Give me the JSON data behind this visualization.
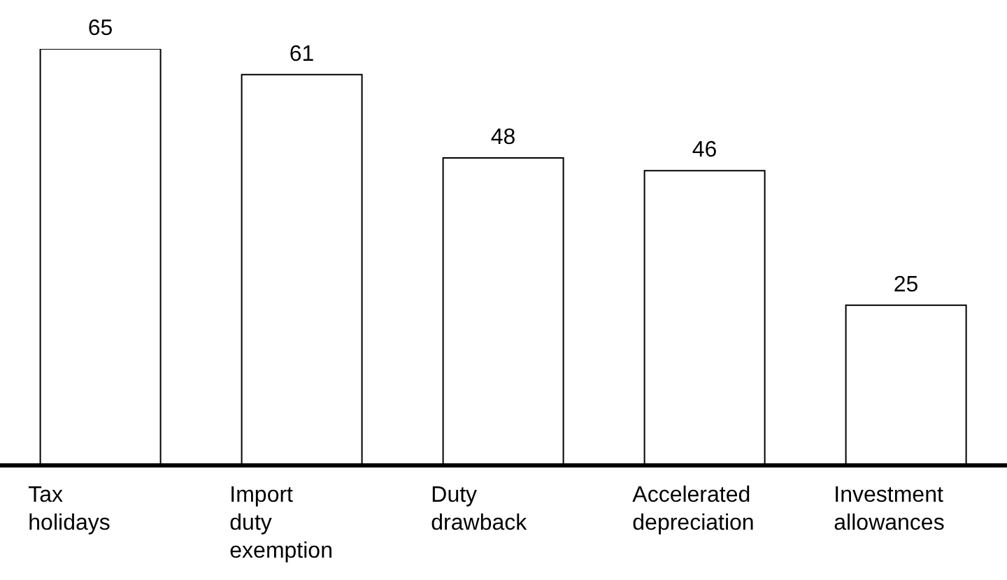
{
  "chart_data": {
    "type": "bar",
    "categories": [
      "Tax holidays",
      "Import duty exemption",
      "Duty drawback",
      "Accelerated depreciation",
      "Investment allowances"
    ],
    "values": [
      65,
      61,
      48,
      46,
      25
    ],
    "color": "#ffffff",
    "data_labels": true
  }
}
